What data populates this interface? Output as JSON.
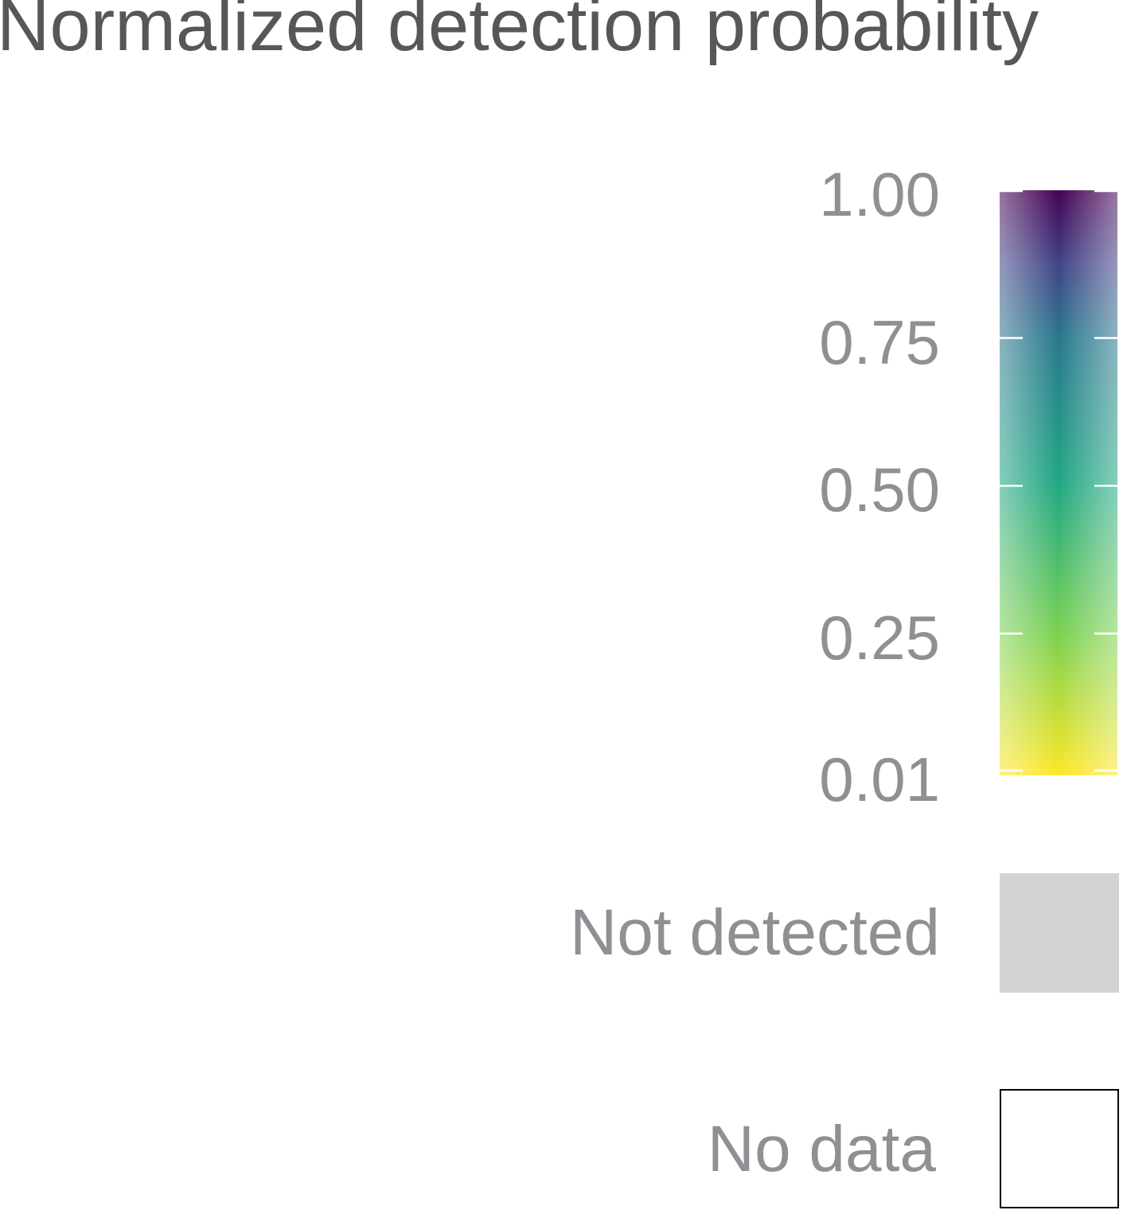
{
  "chart_data": {
    "type": "heatmap",
    "legend_title": "Normalized detection probability",
    "scale": {
      "min": 0.01,
      "max": 1.0,
      "ticks": [
        {
          "value": 1.0,
          "label": "1.00"
        },
        {
          "value": 0.75,
          "label": "0.75"
        },
        {
          "value": 0.5,
          "label": "0.50"
        },
        {
          "value": 0.25,
          "label": "0.25"
        },
        {
          "value": 0.01,
          "label": "0.01"
        }
      ],
      "colormap": "viridis",
      "color_stops": [
        {
          "value": 0.01,
          "color": "#fde725"
        },
        {
          "value": 0.25,
          "color": "#7ad151"
        },
        {
          "value": 0.5,
          "color": "#22a884"
        },
        {
          "value": 0.75,
          "color": "#2a788e"
        },
        {
          "value": 0.875,
          "color": "#414487"
        },
        {
          "value": 1.0,
          "color": "#440154"
        }
      ]
    },
    "categories": [
      {
        "label": "Not detected",
        "fill": "#d3d3d3",
        "stroke": "none"
      },
      {
        "label": "No data",
        "fill": "#ffffff",
        "stroke": "#000000"
      }
    ]
  }
}
